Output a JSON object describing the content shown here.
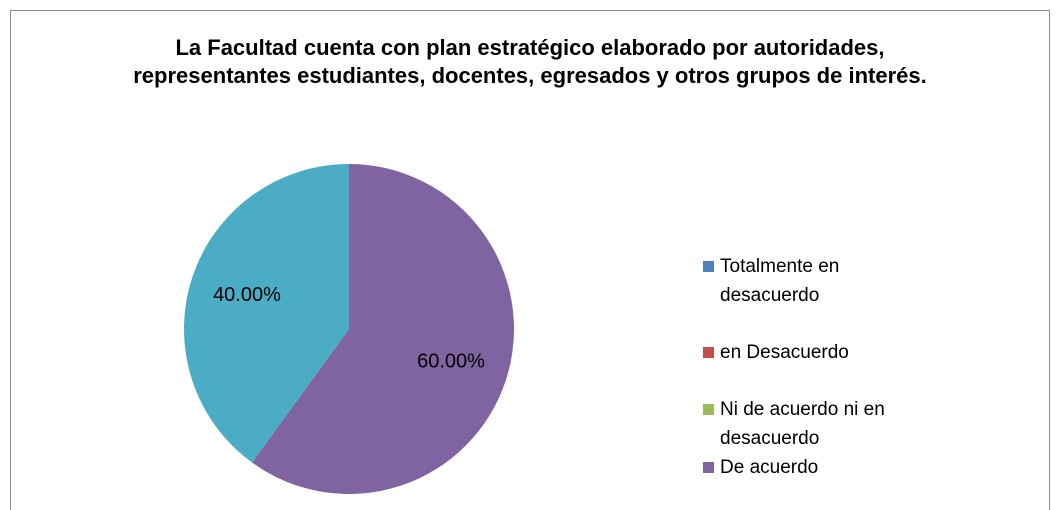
{
  "chart_data": {
    "type": "pie",
    "title": "La Facultad  cuenta con plan estratégico elaborado por autoridades, representantes estudiantes, docentes, egresados y otros grupos de interés.",
    "categories": [
      "Totalmente en desacuerdo",
      "en Desacuerdo",
      "Ni de acuerdo ni en desacuerdo",
      "De acuerdo",
      null
    ],
    "values": [
      0,
      0,
      0,
      60,
      40
    ],
    "value_labels": [
      null,
      null,
      null,
      "60.00%",
      "40.00%"
    ],
    "colors": [
      "#4f81bd",
      "#c0504d",
      "#9bbb59",
      "#8064a2",
      "#4bacc6"
    ],
    "legend": "right"
  }
}
